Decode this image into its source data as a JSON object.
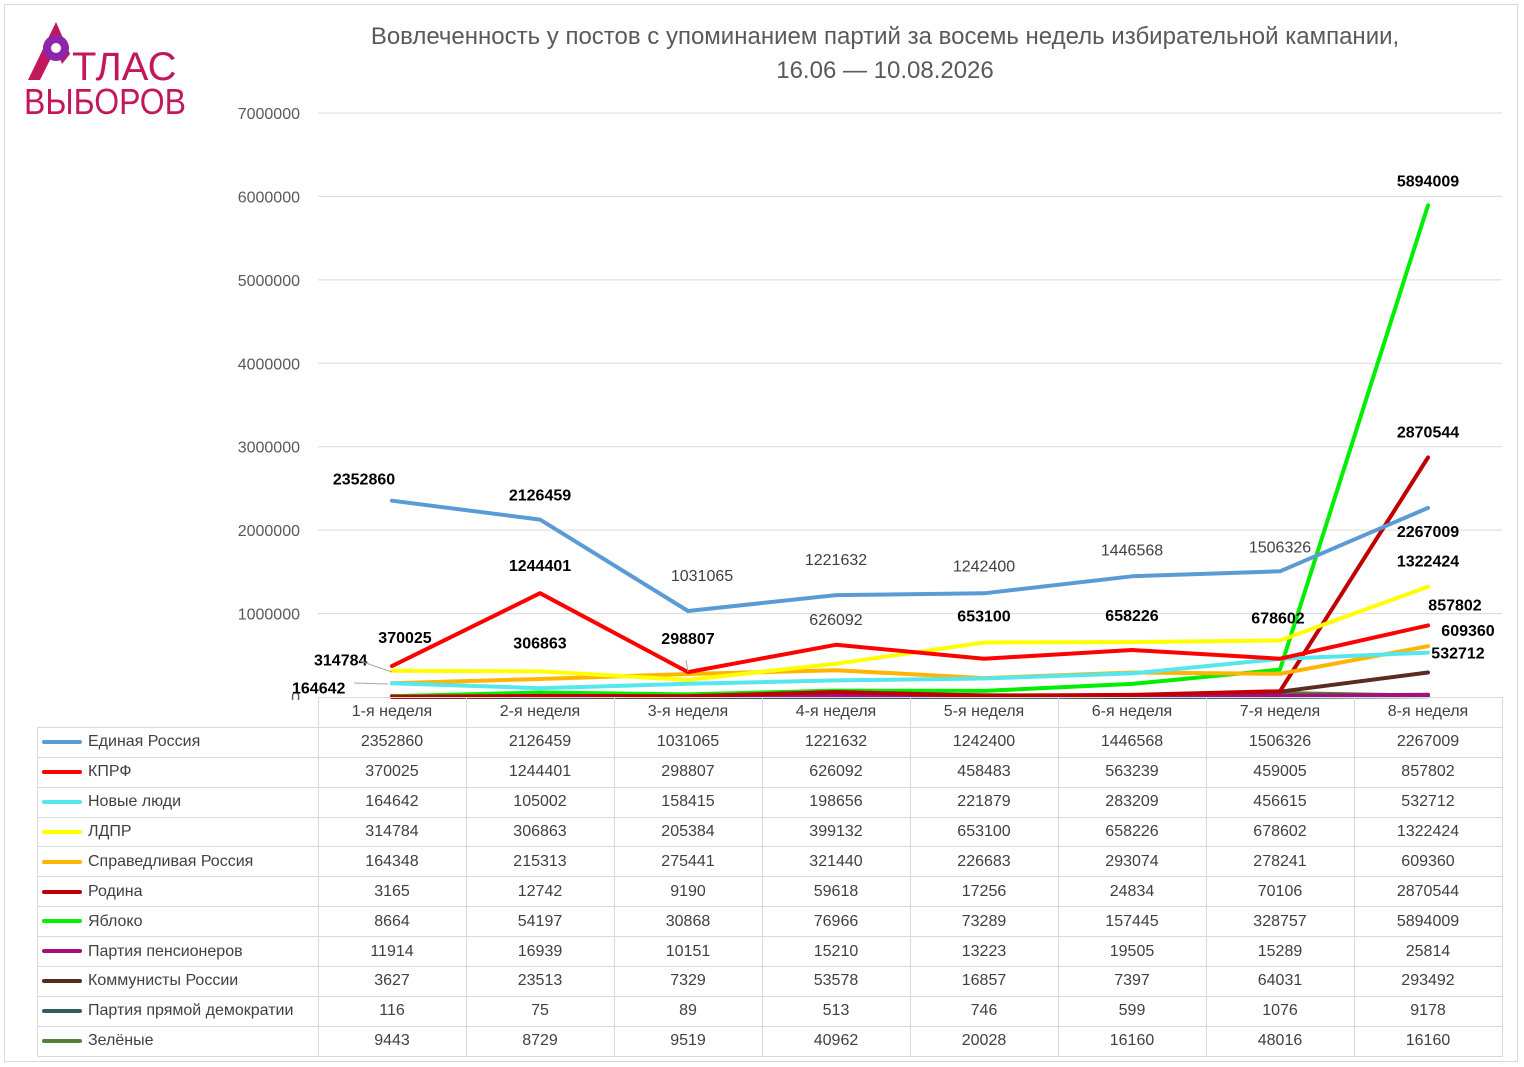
{
  "logo": {
    "line1": "ТЛАС",
    "line2": "ВЫБОРОВ",
    "brand_color": "#c2185b",
    "accent_color": "#8e24aa"
  },
  "chart_data": {
    "type": "line",
    "title": "Вовлеченность у постов с упоминанием партий за восемь недель избирательной кампании,",
    "subtitle": "16.06 — 10.08.2026",
    "xlabel": "",
    "ylabel": "",
    "ylim": [
      0,
      7000000
    ],
    "yticks": [
      0,
      1000000,
      2000000,
      3000000,
      4000000,
      5000000,
      6000000,
      7000000
    ],
    "grid": true,
    "legend": "data-table-below",
    "categories": [
      "1-я неделя",
      "2-я неделя",
      "3-я неделя",
      "4-я неделя",
      "5-я неделя",
      "6-я неделя",
      "7-я неделя",
      "8-я неделя"
    ],
    "series": [
      {
        "name": "Единая Россия",
        "color": "#5b9bd5",
        "values": [
          2352860,
          2126459,
          1031065,
          1221632,
          1242400,
          1446568,
          1506326,
          2267009
        ]
      },
      {
        "name": "КПРФ",
        "color": "#ff0000",
        "values": [
          370025,
          1244401,
          298807,
          626092,
          458483,
          563239,
          459005,
          857802
        ]
      },
      {
        "name": "Новые люди",
        "color": "#55e6ee",
        "values": [
          164642,
          105002,
          158415,
          198656,
          221879,
          283209,
          456615,
          532712
        ]
      },
      {
        "name": "ЛДПР",
        "color": "#ffff00",
        "values": [
          314784,
          306863,
          205384,
          399132,
          653100,
          658226,
          678602,
          1322424
        ]
      },
      {
        "name": "Справедливая Россия",
        "color": "#ffb400",
        "values": [
          164348,
          215313,
          275441,
          321440,
          226683,
          293074,
          278241,
          609360
        ]
      },
      {
        "name": "Родина",
        "color": "#c00000",
        "values": [
          3165,
          12742,
          9190,
          59618,
          17256,
          24834,
          70106,
          2870544
        ]
      },
      {
        "name": "Яблоко",
        "color": "#00ee00",
        "values": [
          8664,
          54197,
          30868,
          76966,
          73289,
          157445,
          328757,
          5894009
        ]
      },
      {
        "name": "Партия пенсионеров",
        "color": "#a3107e",
        "values": [
          11914,
          16939,
          10151,
          15210,
          13223,
          19505,
          15289,
          25814
        ]
      },
      {
        "name": "Коммунисты России",
        "color": "#5c2a22",
        "values": [
          3627,
          23513,
          7329,
          53578,
          16857,
          7397,
          64031,
          293492
        ]
      },
      {
        "name": "Партия прямой демократии",
        "color": "#2f5d62",
        "values": [
          116,
          75,
          89,
          513,
          746,
          599,
          1076,
          9178
        ]
      },
      {
        "name": "Зелёные",
        "color": "#548235",
        "values": [
          9443,
          8729,
          9519,
          40962,
          20028,
          16160,
          48016,
          16160
        ]
      }
    ],
    "annotations": [
      {
        "text": "2352860",
        "x": "1-я неделя",
        "y": 2352860
      },
      {
        "text": "2126459",
        "x": "2-я неделя",
        "y": 2126459
      },
      {
        "text": "1031065",
        "x": "3-я неделя",
        "y": 1031065
      },
      {
        "text": "1221632",
        "x": "4-я неделя",
        "y": 1221632
      },
      {
        "text": "1242400",
        "x": "5-я неделя",
        "y": 1242400
      },
      {
        "text": "1446568",
        "x": "6-я неделя",
        "y": 1446568
      },
      {
        "text": "1506326",
        "x": "7-я неделя",
        "y": 1506326
      },
      {
        "text": "2267009",
        "x": "8-я неделя",
        "y": 2267009
      },
      {
        "text": "370025",
        "x": "1-я неделя",
        "y": 370025
      },
      {
        "text": "1244401",
        "x": "2-я неделя",
        "y": 1244401
      },
      {
        "text": "306863",
        "x": "2-я неделя",
        "y": 306863
      },
      {
        "text": "298807",
        "x": "3-я неделя",
        "y": 298807
      },
      {
        "text": "626092",
        "x": "4-я неделя",
        "y": 626092
      },
      {
        "text": "653100",
        "x": "5-я неделя",
        "y": 653100
      },
      {
        "text": "658226",
        "x": "6-я неделя",
        "y": 658226
      },
      {
        "text": "678602",
        "x": "7-я неделя",
        "y": 678602
      },
      {
        "text": "314784",
        "x": "1-я неделя",
        "y": 314784
      },
      {
        "text": "164642",
        "x": "1-я неделя",
        "y": 164642
      },
      {
        "text": "5894009",
        "x": "8-я неделя",
        "y": 5894009
      },
      {
        "text": "2870544",
        "x": "8-я неделя",
        "y": 2870544
      },
      {
        "text": "1322424",
        "x": "8-я неделя",
        "y": 1322424
      },
      {
        "text": "857802",
        "x": "8-я неделя",
        "y": 857802
      },
      {
        "text": "609360",
        "x": "8-я неделя",
        "y": 609360
      },
      {
        "text": "532712",
        "x": "8-я неделя",
        "y": 532712
      }
    ]
  }
}
